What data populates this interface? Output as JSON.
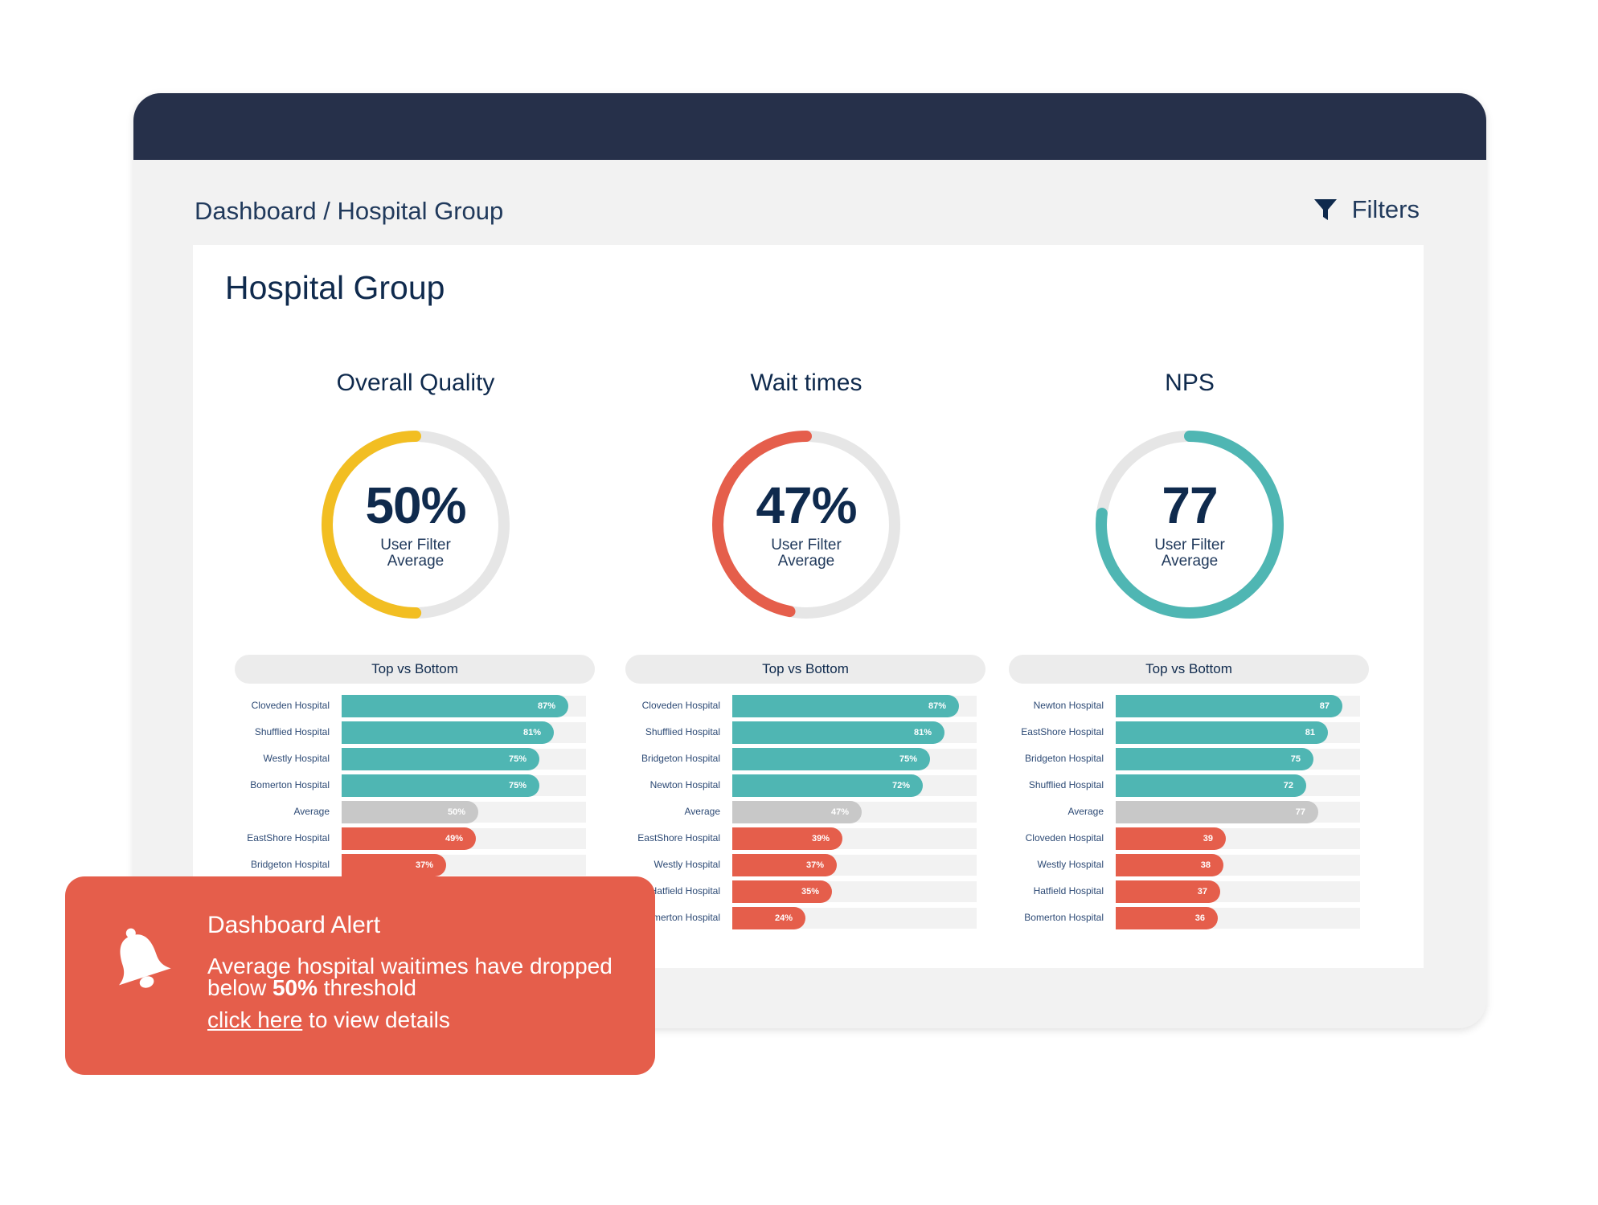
{
  "breadcrumb": {
    "root": "Dashboard",
    "separator": " / ",
    "current": "Hospital Group"
  },
  "filters": {
    "label": "Filters",
    "icon": "funnel-icon"
  },
  "panel": {
    "title": "Hospital Group"
  },
  "metrics": [
    {
      "title": "Overall Quality",
      "value": "50%",
      "fraction": 0.5,
      "sub_line1": "User Filter",
      "sub_line2": "Average",
      "color": "#f2be22",
      "list_header": "Top vs Bottom",
      "rows": [
        {
          "name": "Cloveden Hospital",
          "label": "87%",
          "value": 87,
          "kind": "top"
        },
        {
          "name": "Shufflied Hospital",
          "label": "81%",
          "value": 81,
          "kind": "top"
        },
        {
          "name": "Westly Hospital",
          "label": "75%",
          "value": 75,
          "kind": "top"
        },
        {
          "name": "Bomerton Hospital",
          "label": "75%",
          "value": 75,
          "kind": "top"
        },
        {
          "name": "Average",
          "label": "50%",
          "value": 50,
          "kind": "avg"
        },
        {
          "name": "EastShore Hospital",
          "label": "49%",
          "value": 49,
          "kind": "bot"
        },
        {
          "name": "Bridgeton Hospital",
          "label": "37%",
          "value": 37,
          "kind": "bot"
        }
      ]
    },
    {
      "title": "Wait times",
      "value": "47%",
      "fraction": 0.47,
      "sub_line1": "User Filter",
      "sub_line2": "Average",
      "color": "#e55e4b",
      "list_header": "Top vs Bottom",
      "rows": [
        {
          "name": "Cloveden Hospital",
          "label": "87%",
          "value": 87,
          "kind": "top"
        },
        {
          "name": "Shufflied Hospital",
          "label": "81%",
          "value": 81,
          "kind": "top"
        },
        {
          "name": "Bridgeton Hospital",
          "label": "75%",
          "value": 75,
          "kind": "top"
        },
        {
          "name": "Newton Hospital",
          "label": "72%",
          "value": 72,
          "kind": "top"
        },
        {
          "name": "Average",
          "label": "47%",
          "value": 47,
          "kind": "avg"
        },
        {
          "name": "EastShore Hospital",
          "label": "39%",
          "value": 39,
          "kind": "bot"
        },
        {
          "name": "Westly Hospital",
          "label": "37%",
          "value": 37,
          "kind": "bot"
        },
        {
          "name": "Hatfield Hospital",
          "label": "35%",
          "value": 35,
          "kind": "bot"
        },
        {
          "name": "Bomerton Hospital",
          "label": "24%",
          "value": 24,
          "kind": "bot"
        }
      ]
    },
    {
      "title": "NPS",
      "value": "77",
      "fraction": 0.77,
      "sub_line1": "User Filter",
      "sub_line2": "Average",
      "color": "#4fb6b3",
      "list_header": "Top vs Bottom",
      "rows": [
        {
          "name": "Newton Hospital",
          "label": "87",
          "value": 87,
          "kind": "top"
        },
        {
          "name": "EastShore Hospital",
          "label": "81",
          "value": 81,
          "kind": "top"
        },
        {
          "name": "Bridgeton Hospital",
          "label": "75",
          "value": 75,
          "kind": "top"
        },
        {
          "name": "Shufflied Hospital",
          "label": "72",
          "value": 72,
          "kind": "top"
        },
        {
          "name": "Average",
          "label": "77",
          "value": 77,
          "kind": "avg"
        },
        {
          "name": "Cloveden Hospital",
          "label": "39",
          "value": 39,
          "kind": "bot"
        },
        {
          "name": "Westly Hospital",
          "label": "38",
          "value": 38,
          "kind": "bot"
        },
        {
          "name": "Hatfield Hospital",
          "label": "37",
          "value": 37,
          "kind": "bot"
        },
        {
          "name": "Bomerton Hospital",
          "label": "36",
          "value": 36,
          "kind": "bot"
        }
      ]
    }
  ],
  "alert": {
    "title": "Dashboard Alert",
    "message_part1": "Average hospital waitimes have dropped below ",
    "message_bold": "50%",
    "message_part2": " threshold",
    "link_text": "click here",
    "link_suffix": " to view details",
    "icon": "bell-icon"
  },
  "colors": {
    "titlebar": "#26304a",
    "top": "#4fb6b3",
    "avg": "#c8c8c8",
    "bottom": "#e55e4b",
    "track": "#e6e6e6"
  }
}
